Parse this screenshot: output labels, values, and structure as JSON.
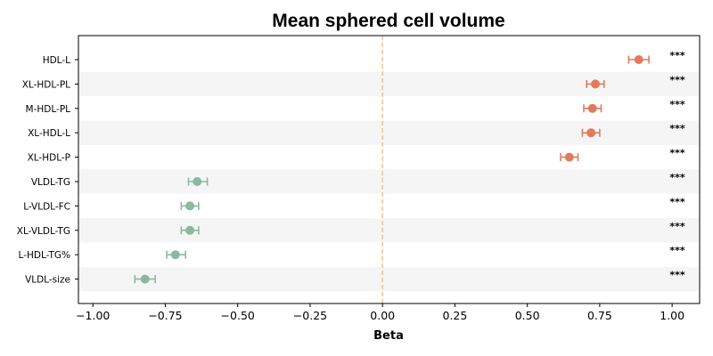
{
  "chart_data": {
    "type": "scatter",
    "title": "Mean sphered cell volume",
    "xlabel": "Beta",
    "ylabel": "",
    "xlim": [
      -1.05,
      1.095
    ],
    "xticks": [
      -1.0,
      -0.75,
      -0.5,
      -0.25,
      0.0,
      0.25,
      0.5,
      0.75,
      1.0
    ],
    "xtick_labels": [
      "−1.00",
      "−0.75",
      "−0.50",
      "−0.25",
      "0.00",
      "0.25",
      "0.50",
      "0.75",
      "1.00"
    ],
    "reference_line": 0.0,
    "grid": false,
    "row_shading": "alternating",
    "colors": {
      "positive": "#e07b5f",
      "negative": "#8ab8a0",
      "reference_line": "#f5c690",
      "shade": "#f5f5f5"
    },
    "points": [
      {
        "label": "HDL-L",
        "beta": 0.885,
        "ci_low": 0.85,
        "ci_high": 0.92,
        "sig": "***"
      },
      {
        "label": "XL-HDL-PL",
        "beta": 0.735,
        "ci_low": 0.705,
        "ci_high": 0.765,
        "sig": "***"
      },
      {
        "label": "M-HDL-PL",
        "beta": 0.725,
        "ci_low": 0.695,
        "ci_high": 0.755,
        "sig": "***"
      },
      {
        "label": "XL-HDL-L",
        "beta": 0.72,
        "ci_low": 0.69,
        "ci_high": 0.75,
        "sig": "***"
      },
      {
        "label": "XL-HDL-P",
        "beta": 0.645,
        "ci_low": 0.615,
        "ci_high": 0.675,
        "sig": "***"
      },
      {
        "label": "VLDL-TG",
        "beta": -0.64,
        "ci_low": -0.67,
        "ci_high": -0.605,
        "sig": "***"
      },
      {
        "label": "L-VLDL-FC",
        "beta": -0.665,
        "ci_low": -0.695,
        "ci_high": -0.635,
        "sig": "***"
      },
      {
        "label": "XL-VLDL-TG",
        "beta": -0.665,
        "ci_low": -0.695,
        "ci_high": -0.635,
        "sig": "***"
      },
      {
        "label": "L-HDL-TG%",
        "beta": -0.715,
        "ci_low": -0.745,
        "ci_high": -0.68,
        "sig": "***"
      },
      {
        "label": "VLDL-size",
        "beta": -0.82,
        "ci_low": -0.855,
        "ci_high": -0.785,
        "sig": "***"
      }
    ]
  }
}
